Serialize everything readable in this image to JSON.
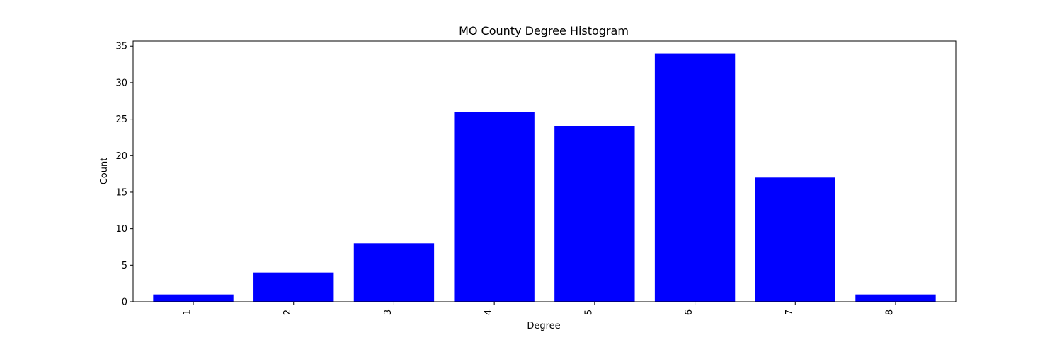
{
  "chart_data": {
    "type": "bar",
    "title": "MO County Degree Histogram",
    "xlabel": "Degree",
    "ylabel": "Count",
    "categories": [
      "1",
      "2",
      "3",
      "4",
      "5",
      "6",
      "7",
      "8"
    ],
    "values": [
      1,
      4,
      8,
      26,
      24,
      34,
      17,
      1
    ],
    "ylim": [
      0,
      35.7
    ],
    "yticks": [
      0,
      5,
      10,
      15,
      20,
      25,
      30,
      35
    ],
    "bar_color": "#0000ff",
    "grid": false,
    "legend": "none"
  }
}
